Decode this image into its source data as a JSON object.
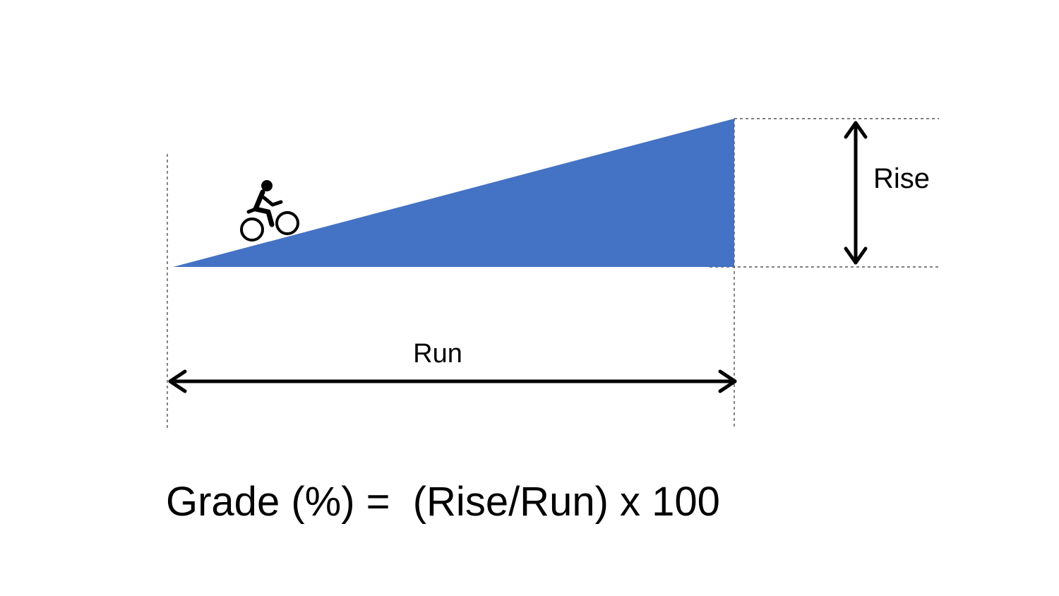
{
  "labels": {
    "rise": "Rise",
    "run": "Run"
  },
  "formula": "Grade (%) =  (Rise/Run) x 100"
}
